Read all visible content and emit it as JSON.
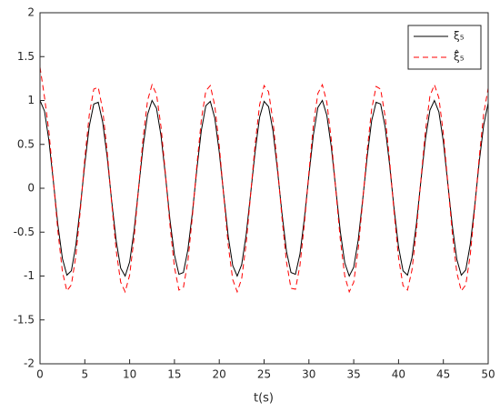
{
  "chart_data": {
    "type": "line",
    "xlabel": "t(s)",
    "x": [
      0,
      0.5,
      1,
      1.5,
      2,
      2.5,
      3,
      3.5,
      4,
      4.5,
      5,
      5.5,
      6,
      6.5,
      7,
      7.5,
      8,
      8.5,
      9,
      9.5,
      10,
      10.5,
      11,
      11.5,
      12,
      12.5,
      13,
      13.5,
      14,
      14.5,
      15,
      15.5,
      16,
      16.5,
      17,
      17.5,
      18,
      18.5,
      19,
      19.5,
      20,
      20.5,
      21,
      21.5,
      22,
      22.5,
      23,
      23.5,
      24,
      24.5,
      25,
      25.5,
      26,
      26.5,
      27,
      27.5,
      28,
      28.5,
      29,
      29.5,
      30,
      30.5,
      31,
      31.5,
      32,
      32.5,
      33,
      33.5,
      34,
      34.5,
      35,
      35.5,
      36,
      36.5,
      37,
      37.5,
      38,
      38.5,
      39,
      39.5,
      40,
      40.5,
      41,
      41.5,
      42,
      42.5,
      43,
      43.5,
      44,
      44.5,
      45,
      45.5,
      46,
      46.5,
      47,
      47.5,
      48,
      48.5,
      49,
      49.5,
      50
    ],
    "series": [
      {
        "name": "ξ₅",
        "color": "#000000",
        "line_style": "solid",
        "values": [
          1,
          0.88,
          0.54,
          0.07,
          -0.42,
          -0.8,
          -0.99,
          -0.94,
          -0.65,
          -0.21,
          0.28,
          0.71,
          0.96,
          0.98,
          0.75,
          0.35,
          -0.15,
          -0.6,
          -0.91,
          -1,
          -0.84,
          -0.48,
          0,
          0.48,
          0.84,
          1,
          0.91,
          0.6,
          0.14,
          -0.36,
          -0.76,
          -0.98,
          -0.96,
          -0.7,
          -0.28,
          0.22,
          0.66,
          0.94,
          0.99,
          0.8,
          0.41,
          -0.08,
          -0.55,
          -0.88,
          -1,
          -0.87,
          -0.53,
          -0.06,
          0.42,
          0.81,
          0.99,
          0.93,
          0.65,
          0.2,
          -0.29,
          -0.72,
          -0.96,
          -0.98,
          -0.75,
          -0.34,
          0.15,
          0.61,
          0.92,
          1,
          0.83,
          0.47,
          -0.01,
          -0.49,
          -0.85,
          -1,
          -0.9,
          -0.59,
          -0.13,
          0.36,
          0.77,
          0.98,
          0.96,
          0.7,
          0.27,
          -0.23,
          -0.67,
          -0.94,
          -0.99,
          -0.79,
          -0.4,
          0.09,
          0.56,
          0.89,
          1,
          0.87,
          0.53,
          0.05,
          -0.43,
          -0.81,
          -0.99,
          -0.93,
          -0.64,
          -0.2,
          0.3,
          0.72,
          0.97
        ]
      },
      {
        "name": "ξ̂₅",
        "color": "#ff0000",
        "line_style": "dashed",
        "values": [
          1.38,
          1.04,
          0.64,
          0.08,
          -0.49,
          -0.95,
          -1.17,
          -1.1,
          -0.77,
          -0.25,
          0.34,
          0.84,
          1.13,
          1.15,
          0.89,
          0.41,
          -0.17,
          -0.71,
          -1.07,
          -1.18,
          -0.99,
          -0.56,
          0,
          0.57,
          1,
          1.18,
          1.07,
          0.7,
          0.16,
          -0.42,
          -0.9,
          -1.16,
          -1.13,
          -0.83,
          -0.32,
          0.26,
          0.78,
          1.11,
          1.17,
          0.94,
          0.48,
          -0.09,
          -0.65,
          -1.04,
          -1.18,
          -1.03,
          -0.63,
          -0.07,
          0.5,
          0.95,
          1.17,
          1.1,
          0.76,
          0.24,
          -0.34,
          -0.84,
          -1.14,
          -1.15,
          -0.88,
          -0.4,
          0.18,
          0.72,
          1.08,
          1.18,
          0.98,
          0.55,
          -0.02,
          -0.58,
          -1,
          -1.18,
          -1.07,
          -0.69,
          -0.15,
          0.43,
          0.9,
          1.16,
          1.13,
          0.82,
          0.32,
          -0.27,
          -0.79,
          -1.11,
          -1.16,
          -0.93,
          -0.47,
          0.1,
          0.65,
          1.05,
          1.18,
          1.03,
          0.62,
          0.06,
          -0.51,
          -0.96,
          -1.17,
          -1.1,
          -0.76,
          -0.23,
          0.35,
          0.85,
          1.14
        ]
      }
    ],
    "xlim": [
      0,
      50
    ],
    "xticks": [
      0,
      5,
      10,
      15,
      20,
      25,
      30,
      35,
      40,
      45,
      50
    ],
    "ylim": [
      -2,
      2
    ],
    "yticks": [
      -2,
      -1.5,
      -1,
      -0.5,
      0,
      0.5,
      1,
      1.5,
      2
    ],
    "legend": "top-right"
  }
}
